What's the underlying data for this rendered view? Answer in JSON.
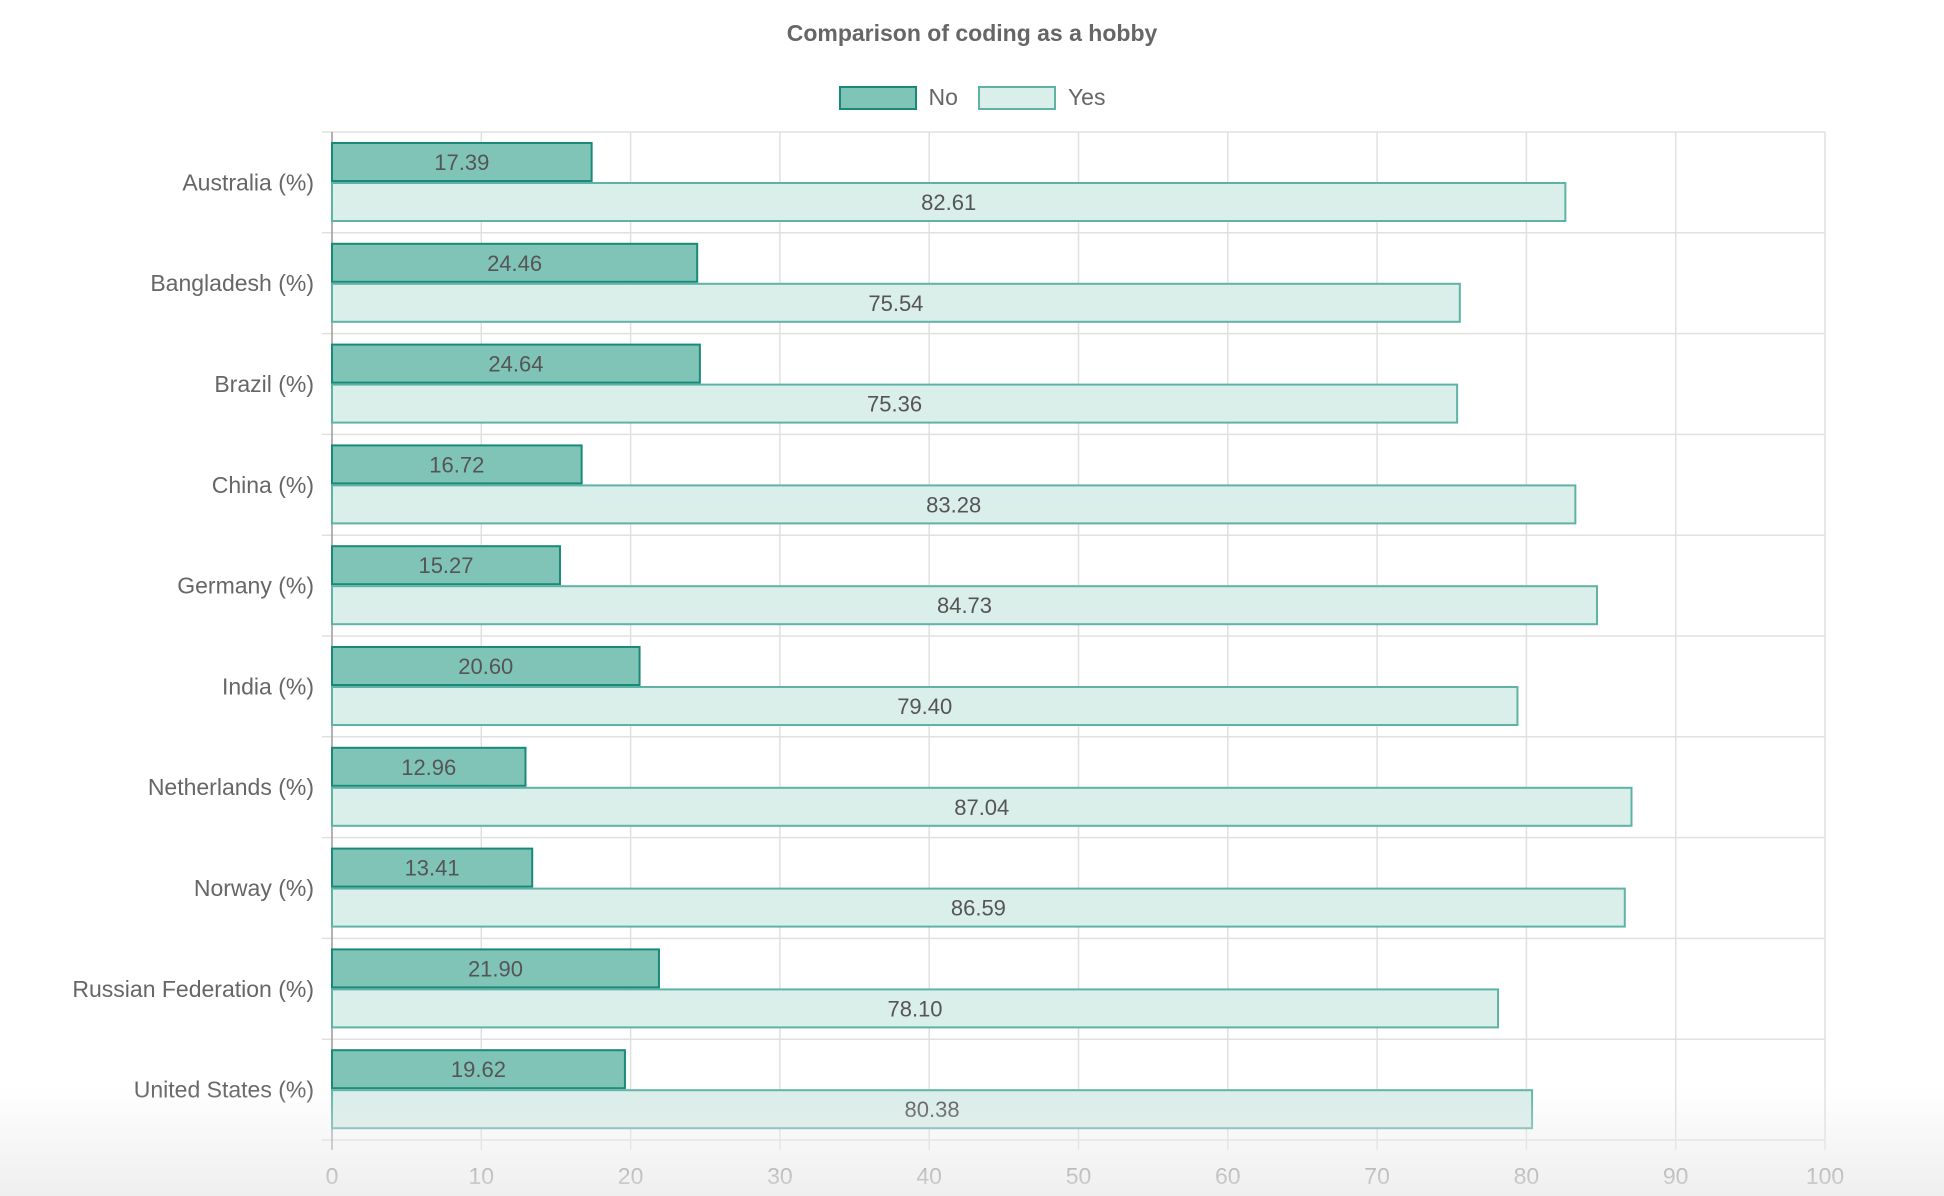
{
  "chart_data": {
    "type": "bar",
    "orientation": "horizontal",
    "title": "Comparison of coding as a hobby",
    "categories": [
      "Australia (%)",
      "Bangladesh (%)",
      "Brazil (%)",
      "China (%)",
      "Germany (%)",
      "India (%)",
      "Netherlands (%)",
      "Norway (%)",
      "Russian Federation (%)",
      "United States (%)"
    ],
    "series": [
      {
        "name": "No",
        "values": [
          17.39,
          24.46,
          24.64,
          16.72,
          15.27,
          20.6,
          12.96,
          13.41,
          21.9,
          19.62
        ],
        "labels": [
          "17.39",
          "24.46",
          "24.64",
          "16.72",
          "15.27",
          "20.60",
          "12.96",
          "13.41",
          "21.90",
          "19.62"
        ],
        "fill": "#80c4b8",
        "stroke": "#1a8a78"
      },
      {
        "name": "Yes",
        "values": [
          82.61,
          75.54,
          75.36,
          83.28,
          84.73,
          79.4,
          87.04,
          86.59,
          78.1,
          80.38
        ],
        "labels": [
          "82.61",
          "75.54",
          "75.36",
          "83.28",
          "84.73",
          "79.40",
          "87.04",
          "86.59",
          "78.10",
          "80.38"
        ],
        "fill": "#daeeea",
        "stroke": "#5fb3a6"
      }
    ],
    "xlim": [
      0,
      100
    ],
    "xticks": [
      0,
      10,
      20,
      30,
      40,
      50,
      60,
      70,
      80,
      90,
      100
    ],
    "xtick_labels": [
      "0",
      "10",
      "20",
      "30",
      "40",
      "50",
      "60",
      "70",
      "80",
      "90",
      "100"
    ],
    "grid": true,
    "legend_position": "top"
  }
}
